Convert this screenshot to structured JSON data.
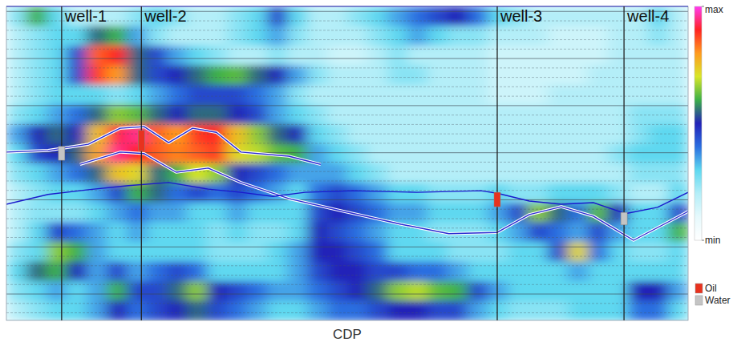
{
  "chart_data": {
    "type": "heatmap",
    "xlabel": "CDP",
    "xlim": [
      0,
      100
    ],
    "ylim": [
      100,
      0
    ],
    "yticks": [
      1.6,
      4.6,
      7.6,
      10.6,
      13.6,
      16.6,
      19.6,
      22.6,
      25.6,
      28.6,
      31.6,
      34.6,
      37.6,
      40.6,
      43.6,
      46.6,
      49.6,
      52.6,
      55.6,
      58.6,
      61.6,
      64.6,
      67.6,
      70.6,
      73.6,
      76.6,
      79.6,
      82.6,
      85.6,
      88.6,
      91.6,
      94.6,
      97.6
    ],
    "grid": true,
    "tick_labels": false,
    "legend": "right",
    "cells": [
      [
        0.25,
        0.6,
        0.3,
        0.2,
        0.2,
        0.2,
        0.25,
        0.3,
        0.25,
        0.2,
        0.2,
        0.25,
        0.3,
        0.45,
        0.3,
        0.2,
        0.2,
        0.25,
        0.3,
        0.35,
        0.4,
        0.45,
        0.5,
        0.4,
        0.3,
        0.25,
        0.2,
        0.2,
        0.2,
        0.2,
        0.2,
        0.2,
        0.3,
        0.2
      ],
      [
        0.2,
        0.25,
        0.3,
        0.3,
        0.55,
        0.6,
        0.35,
        0.25,
        0.2,
        0.2,
        0.2,
        0.25,
        0.3,
        0.35,
        0.25,
        0.2,
        0.2,
        0.2,
        0.25,
        0.3,
        0.35,
        0.3,
        0.25,
        0.25,
        0.2,
        0.2,
        0.2,
        0.15,
        0.15,
        0.15,
        0.2,
        0.2,
        0.25,
        0.2
      ],
      [
        0.2,
        0.25,
        0.3,
        0.45,
        0.85,
        0.9,
        0.55,
        0.45,
        0.35,
        0.3,
        0.25,
        0.2,
        0.2,
        0.25,
        0.2,
        0.2,
        0.15,
        0.15,
        0.2,
        0.25,
        0.2,
        0.2,
        0.2,
        0.2,
        0.15,
        0.15,
        0.15,
        0.15,
        0.15,
        0.15,
        0.2,
        0.2,
        0.2,
        0.2
      ],
      [
        0.2,
        0.25,
        0.3,
        0.45,
        0.88,
        0.8,
        0.55,
        0.45,
        0.5,
        0.55,
        0.6,
        0.62,
        0.55,
        0.5,
        0.35,
        0.25,
        0.2,
        0.2,
        0.2,
        0.25,
        0.25,
        0.2,
        0.2,
        0.2,
        0.15,
        0.15,
        0.15,
        0.15,
        0.15,
        0.2,
        0.2,
        0.2,
        0.2,
        0.2
      ],
      [
        0.2,
        0.25,
        0.3,
        0.3,
        0.3,
        0.25,
        0.3,
        0.35,
        0.4,
        0.45,
        0.45,
        0.45,
        0.4,
        0.35,
        0.25,
        0.2,
        0.2,
        0.2,
        0.2,
        0.2,
        0.2,
        0.2,
        0.2,
        0.2,
        0.15,
        0.15,
        0.15,
        0.2,
        0.2,
        0.2,
        0.2,
        0.2,
        0.2,
        0.2
      ],
      [
        0.25,
        0.3,
        0.35,
        0.4,
        0.55,
        0.65,
        0.62,
        0.55,
        0.5,
        0.55,
        0.55,
        0.5,
        0.45,
        0.35,
        0.3,
        0.25,
        0.2,
        0.2,
        0.2,
        0.2,
        0.2,
        0.2,
        0.2,
        0.2,
        0.2,
        0.2,
        0.2,
        0.2,
        0.2,
        0.2,
        0.2,
        0.25,
        0.25,
        0.25
      ],
      [
        0.35,
        0.5,
        0.55,
        0.5,
        0.75,
        0.92,
        0.95,
        0.85,
        0.8,
        0.88,
        0.9,
        0.75,
        0.65,
        0.55,
        0.5,
        0.3,
        0.25,
        0.2,
        0.2,
        0.2,
        0.2,
        0.2,
        0.2,
        0.2,
        0.2,
        0.2,
        0.2,
        0.2,
        0.2,
        0.2,
        0.2,
        0.25,
        0.3,
        0.3
      ],
      [
        0.3,
        0.45,
        0.5,
        0.55,
        0.78,
        0.95,
        0.9,
        0.85,
        0.82,
        0.85,
        0.88,
        0.72,
        0.68,
        0.62,
        0.6,
        0.35,
        0.3,
        0.25,
        0.2,
        0.2,
        0.2,
        0.2,
        0.2,
        0.2,
        0.2,
        0.2,
        0.2,
        0.2,
        0.2,
        0.2,
        0.25,
        0.3,
        0.3,
        0.3
      ],
      [
        0.25,
        0.3,
        0.35,
        0.4,
        0.55,
        0.75,
        0.72,
        0.55,
        0.6,
        0.7,
        0.65,
        0.5,
        0.45,
        0.4,
        0.35,
        0.35,
        0.35,
        0.3,
        0.25,
        0.2,
        0.2,
        0.2,
        0.2,
        0.2,
        0.2,
        0.2,
        0.2,
        0.2,
        0.2,
        0.2,
        0.2,
        0.25,
        0.25,
        0.25
      ],
      [
        0.2,
        0.25,
        0.3,
        0.3,
        0.35,
        0.45,
        0.6,
        0.55,
        0.4,
        0.45,
        0.4,
        0.45,
        0.4,
        0.35,
        0.3,
        0.4,
        0.45,
        0.4,
        0.35,
        0.3,
        0.3,
        0.25,
        0.25,
        0.25,
        0.3,
        0.25,
        0.25,
        0.3,
        0.3,
        0.3,
        0.25,
        0.2,
        0.2,
        0.3
      ],
      [
        0.2,
        0.25,
        0.25,
        0.25,
        0.3,
        0.35,
        0.4,
        0.35,
        0.35,
        0.3,
        0.3,
        0.35,
        0.3,
        0.3,
        0.3,
        0.45,
        0.5,
        0.45,
        0.4,
        0.35,
        0.35,
        0.3,
        0.3,
        0.3,
        0.35,
        0.45,
        0.65,
        0.55,
        0.4,
        0.62,
        0.5,
        0.3,
        0.3,
        0.45
      ],
      [
        0.2,
        0.3,
        0.45,
        0.4,
        0.35,
        0.3,
        0.35,
        0.3,
        0.3,
        0.3,
        0.25,
        0.3,
        0.25,
        0.25,
        0.3,
        0.5,
        0.45,
        0.4,
        0.35,
        0.3,
        0.3,
        0.25,
        0.25,
        0.25,
        0.3,
        0.35,
        0.45,
        0.4,
        0.35,
        0.45,
        0.35,
        0.3,
        0.3,
        0.6
      ],
      [
        0.25,
        0.3,
        0.65,
        0.6,
        0.35,
        0.3,
        0.3,
        0.3,
        0.3,
        0.3,
        0.25,
        0.25,
        0.25,
        0.3,
        0.35,
        0.5,
        0.5,
        0.45,
        0.4,
        0.3,
        0.3,
        0.3,
        0.25,
        0.25,
        0.25,
        0.3,
        0.3,
        0.45,
        0.72,
        0.4,
        0.3,
        0.25,
        0.25,
        0.3
      ],
      [
        0.3,
        0.55,
        0.6,
        0.5,
        0.35,
        0.45,
        0.35,
        0.4,
        0.45,
        0.4,
        0.3,
        0.3,
        0.3,
        0.3,
        0.35,
        0.45,
        0.5,
        0.5,
        0.45,
        0.45,
        0.4,
        0.4,
        0.35,
        0.3,
        0.3,
        0.3,
        0.3,
        0.3,
        0.35,
        0.3,
        0.3,
        0.3,
        0.3,
        0.3
      ],
      [
        0.25,
        0.3,
        0.35,
        0.3,
        0.35,
        0.6,
        0.45,
        0.45,
        0.55,
        0.65,
        0.5,
        0.45,
        0.4,
        0.35,
        0.35,
        0.4,
        0.45,
        0.5,
        0.55,
        0.65,
        0.68,
        0.62,
        0.6,
        0.45,
        0.35,
        0.3,
        0.3,
        0.3,
        0.3,
        0.3,
        0.3,
        0.5,
        0.5,
        0.35
      ],
      [
        0.2,
        0.25,
        0.3,
        0.3,
        0.35,
        0.5,
        0.4,
        0.45,
        0.5,
        0.55,
        0.45,
        0.4,
        0.35,
        0.3,
        0.3,
        0.35,
        0.4,
        0.4,
        0.45,
        0.5,
        0.5,
        0.45,
        0.45,
        0.35,
        0.3,
        0.25,
        0.25,
        0.25,
        0.3,
        0.3,
        0.3,
        0.4,
        0.4,
        0.3
      ]
    ],
    "colorbar": {
      "range": [
        0,
        1
      ],
      "ticks": [
        {
          "value": 0,
          "label": "min"
        },
        {
          "value": 1,
          "label": "max"
        }
      ],
      "colors": [
        "#ffffff",
        "#e6f9fc",
        "#b4eef8",
        "#5ed8f0",
        "#2a6ee0",
        "#2222b8",
        "#3cb048",
        "#d8e628",
        "#ff9a1e",
        "#ff2222",
        "#ff3cf0"
      ]
    },
    "horizons": [
      {
        "color": "#2a2ad0",
        "line_style": "outlined",
        "x": [
          0,
          6.1,
          12.0,
          16.7,
          20.2,
          23.8,
          27.3,
          30.8,
          34.4,
          41.4,
          46.1
        ],
        "y": [
          46.4,
          45.9,
          43.9,
          38.8,
          38.3,
          43.4,
          38.8,
          40.1,
          46.4,
          47.7,
          50.3
        ]
      },
      {
        "color": "#2a2ad0",
        "line_style": "outlined",
        "x": [
          10.8,
          16.7,
          20.2,
          24.9,
          29.6,
          34.4,
          41.4,
          48.5,
          57.9,
          64.9,
          72.0,
          76.7,
          81.4,
          86.1,
          92.0,
          100
        ],
        "y": [
          50.3,
          46.4,
          46.9,
          52.8,
          51.5,
          56.1,
          61.2,
          64.8,
          69.4,
          72.4,
          72.0,
          66.3,
          63.8,
          66.8,
          74.5,
          65.3
        ]
      },
      {
        "color": "#1a1acc",
        "line_style": "solid",
        "x": [
          0,
          6.1,
          12.0,
          17.9,
          23.8,
          29.6,
          34.4,
          39.1,
          43.8,
          50.8,
          60.2,
          69.6,
          72.0,
          76.7,
          81.4,
          86.1,
          90.8,
          95.5,
          100
        ],
        "y": [
          63.0,
          59.9,
          58.4,
          57.1,
          56.1,
          58.2,
          59.2,
          60.5,
          59.2,
          58.7,
          59.2,
          58.7,
          59.5,
          62.0,
          63.0,
          62.5,
          66.0,
          64.0,
          59.2
        ]
      }
    ],
    "wells": [
      {
        "name": "well-1",
        "x": 8.1,
        "intervals": [
          {
            "fluid": "Water",
            "top": 44.6,
            "bottom": 49.0
          }
        ]
      },
      {
        "name": "well-2",
        "x": 19.8,
        "intervals": [
          {
            "fluid": "Oil",
            "top": 39.5,
            "bottom": 46.0
          }
        ]
      },
      {
        "name": "well-3",
        "x": 72.0,
        "intervals": [
          {
            "fluid": "Oil",
            "top": 59.2,
            "bottom": 63.8
          }
        ]
      },
      {
        "name": "well-4",
        "x": 90.6,
        "intervals": [
          {
            "fluid": "Water",
            "top": 65.6,
            "bottom": 69.6
          }
        ]
      }
    ],
    "fluids": [
      {
        "name": "Oil",
        "color": "#e8321e"
      },
      {
        "name": "Water",
        "color": "#c4c4c4"
      }
    ]
  }
}
